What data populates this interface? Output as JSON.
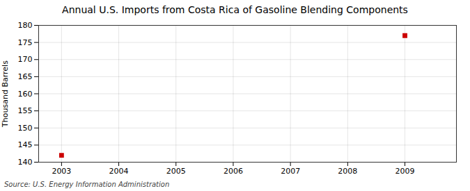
{
  "chart_data": {
    "type": "scatter",
    "title": "Annual U.S. Imports from Costa Rica of Gasoline Blending Components",
    "ylabel": "Thousand Barrels",
    "source": "Source: U.S. Energy Information Administration",
    "x": [
      2003,
      2009
    ],
    "values": [
      142,
      177
    ],
    "color": "#cc0000",
    "marker": "square",
    "xlim": [
      2002.6,
      2009.9
    ],
    "xticks": [
      2003,
      2004,
      2005,
      2006,
      2007,
      2008,
      2009
    ],
    "ylim": [
      140,
      180
    ],
    "yticks": [
      140,
      145,
      150,
      155,
      160,
      165,
      170,
      175,
      180
    ],
    "grid": true
  }
}
